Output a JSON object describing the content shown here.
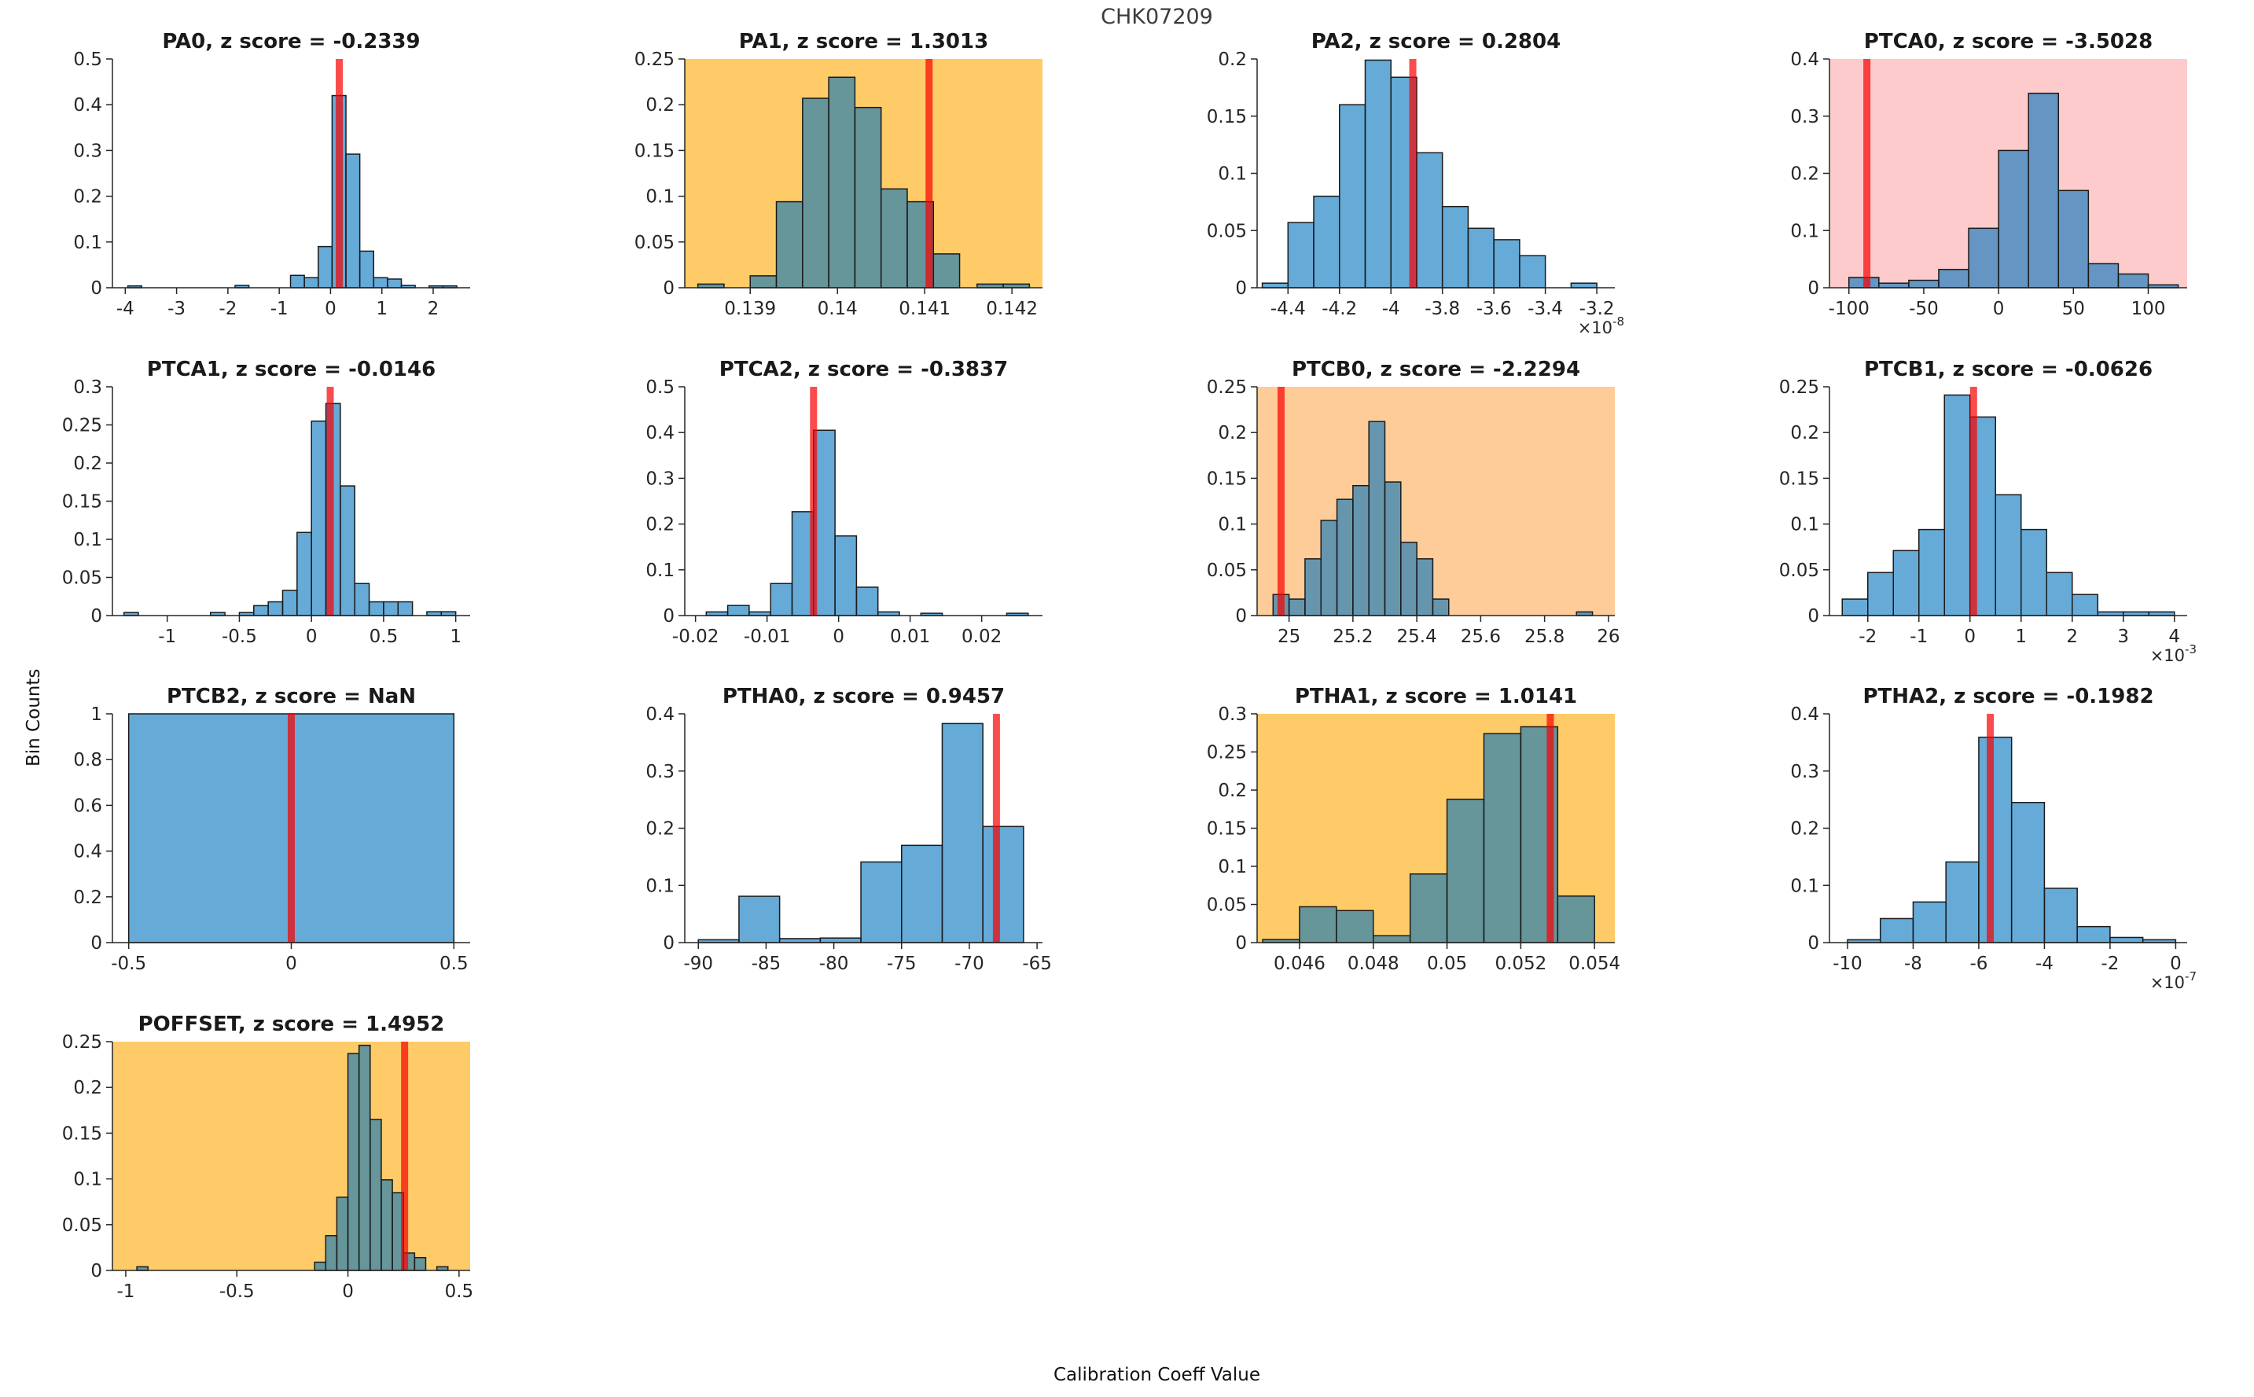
{
  "figure": {
    "title": "CHK07209",
    "xlabel": "Calibration Coeff Value",
    "ylabel": "Bin Counts"
  },
  "colors": {
    "bar_fill_base": "#0072BD",
    "bar_fill_alpha": 0.6,
    "bar_edge": "#1a1a1a",
    "red_line": "#F80000",
    "red_line_alpha": 0.7,
    "axis": "#262626",
    "tick_text": "#262626",
    "title_text": "#1a1a1a",
    "tint": {
      "white": "#FFFFFF",
      "yellow": "#FECB68",
      "orange": "#FECC99",
      "pink": "#FDCBCB"
    }
  },
  "chart_data": [
    {
      "type": "histogram",
      "name": "PA0",
      "title": "PA0, z score = -0.2339",
      "bg": "white",
      "xlim": [
        -4.25,
        2.72
      ],
      "ylim": [
        0,
        0.5
      ],
      "xticks": [
        -4,
        -3,
        -2,
        -1,
        0,
        1,
        2
      ],
      "yticks": [
        0,
        0.1,
        0.2,
        0.3,
        0.4,
        0.5
      ],
      "x_exponent": null,
      "red_line_x": 0.17,
      "bars": [
        [
          -3.95,
          -3.68,
          0.004
        ],
        [
          -1.86,
          -1.59,
          0.005
        ],
        [
          -0.78,
          -0.51,
          0.027
        ],
        [
          -0.51,
          -0.24,
          0.022
        ],
        [
          -0.24,
          0.03,
          0.09
        ],
        [
          0.03,
          0.3,
          0.42
        ],
        [
          0.3,
          0.57,
          0.292
        ],
        [
          0.57,
          0.84,
          0.08
        ],
        [
          0.84,
          1.11,
          0.022
        ],
        [
          1.11,
          1.38,
          0.019
        ],
        [
          1.38,
          1.65,
          0.005
        ],
        [
          1.92,
          2.19,
          0.004
        ],
        [
          2.19,
          2.46,
          0.004
        ]
      ]
    },
    {
      "type": "histogram",
      "name": "PA1",
      "title": "PA1, z score = 1.3013",
      "bg": "yellow",
      "xlim": [
        0.13825,
        0.14235
      ],
      "ylim": [
        0,
        0.25
      ],
      "xticks": [
        0.139,
        0.14,
        0.141,
        0.142
      ],
      "yticks": [
        0,
        0.05,
        0.1,
        0.15,
        0.2,
        0.25
      ],
      "x_exponent": null,
      "red_line_x": 0.14105,
      "bars": [
        [
          0.1384,
          0.1387,
          0.004
        ],
        [
          0.139,
          0.1393,
          0.013
        ],
        [
          0.1393,
          0.1396,
          0.094
        ],
        [
          0.1396,
          0.1399,
          0.207
        ],
        [
          0.1399,
          0.1402,
          0.23
        ],
        [
          0.1402,
          0.1405,
          0.197
        ],
        [
          0.1405,
          0.1408,
          0.108
        ],
        [
          0.1408,
          0.1411,
          0.094
        ],
        [
          0.1411,
          0.1414,
          0.037
        ],
        [
          0.1416,
          0.1419,
          0.004
        ],
        [
          0.1419,
          0.1422,
          0.004
        ]
      ]
    },
    {
      "type": "histogram",
      "name": "PA2",
      "title": "PA2, z score = 0.2804",
      "bg": "white",
      "xlim": [
        -4.52,
        -3.13
      ],
      "ylim": [
        0,
        0.2
      ],
      "xticks": [
        -4.4,
        -4.2,
        -4,
        -3.8,
        -3.6,
        -3.4,
        -3.2
      ],
      "yticks": [
        0,
        0.05,
        0.1,
        0.15,
        0.2
      ],
      "x_exponent": "-8",
      "red_line_x": -3.915,
      "bars": [
        [
          -4.5,
          -4.4,
          0.004
        ],
        [
          -4.4,
          -4.3,
          0.057
        ],
        [
          -4.3,
          -4.2,
          0.08
        ],
        [
          -4.2,
          -4.1,
          0.16
        ],
        [
          -4.1,
          -4,
          0.199
        ],
        [
          -4,
          -3.9,
          0.184
        ],
        [
          -3.9,
          -3.8,
          0.118
        ],
        [
          -3.8,
          -3.7,
          0.071
        ],
        [
          -3.7,
          -3.6,
          0.052
        ],
        [
          -3.6,
          -3.5,
          0.042
        ],
        [
          -3.5,
          -3.4,
          0.028
        ],
        [
          -3.3,
          -3.2,
          0.004
        ]
      ]
    },
    {
      "type": "histogram",
      "name": "PTCA0",
      "title": "PTCA0, z score = -3.5028",
      "bg": "pink",
      "xlim": [
        -113,
        126
      ],
      "ylim": [
        0,
        0.4
      ],
      "xticks": [
        -100,
        -50,
        0,
        50,
        100
      ],
      "yticks": [
        0,
        0.1,
        0.2,
        0.3,
        0.4
      ],
      "x_exponent": null,
      "red_line_x": -88,
      "bars": [
        [
          -100,
          -80,
          0.018
        ],
        [
          -80,
          -60,
          0.008
        ],
        [
          -60,
          -40,
          0.013
        ],
        [
          -40,
          -20,
          0.032
        ],
        [
          -20,
          0,
          0.104
        ],
        [
          0,
          20,
          0.24
        ],
        [
          20,
          40,
          0.34
        ],
        [
          40,
          60,
          0.17
        ],
        [
          60,
          80,
          0.042
        ],
        [
          80,
          100,
          0.024
        ],
        [
          100,
          120,
          0.005
        ]
      ]
    },
    {
      "type": "histogram",
      "name": "PTCA1",
      "title": "PTCA1, z score = -0.0146",
      "bg": "white",
      "xlim": [
        -1.38,
        1.1
      ],
      "ylim": [
        0,
        0.3
      ],
      "xticks": [
        -1,
        -0.5,
        0,
        0.5,
        1
      ],
      "yticks": [
        0,
        0.05,
        0.1,
        0.15,
        0.2,
        0.25,
        0.3
      ],
      "x_exponent": null,
      "red_line_x": 0.13,
      "bars": [
        [
          -1.3,
          -1.2,
          0.004
        ],
        [
          -0.7,
          -0.6,
          0.004
        ],
        [
          -0.5,
          -0.4,
          0.004
        ],
        [
          -0.4,
          -0.3,
          0.013
        ],
        [
          -0.3,
          -0.2,
          0.018
        ],
        [
          -0.2,
          -0.1,
          0.033
        ],
        [
          -0.1,
          0,
          0.109
        ],
        [
          0,
          0.1,
          0.255
        ],
        [
          0.1,
          0.2,
          0.278
        ],
        [
          0.2,
          0.3,
          0.17
        ],
        [
          0.3,
          0.4,
          0.042
        ],
        [
          0.4,
          0.5,
          0.018
        ],
        [
          0.5,
          0.6,
          0.018
        ],
        [
          0.6,
          0.7,
          0.018
        ],
        [
          0.8,
          0.9,
          0.005
        ],
        [
          0.9,
          1,
          0.005
        ]
      ]
    },
    {
      "type": "histogram",
      "name": "PTCA2",
      "title": "PTCA2, z score = -0.3837",
      "bg": "white",
      "xlim": [
        -0.0215,
        0.0285
      ],
      "ylim": [
        0,
        0.5
      ],
      "xticks": [
        -0.02,
        -0.01,
        0,
        0.01,
        0.02
      ],
      "yticks": [
        0,
        0.1,
        0.2,
        0.3,
        0.4,
        0.5
      ],
      "x_exponent": null,
      "red_line_x": -0.0035,
      "bars": [
        [
          -0.0185,
          -0.0155,
          0.008
        ],
        [
          -0.0155,
          -0.0125,
          0.022
        ],
        [
          -0.0125,
          -0.0095,
          0.008
        ],
        [
          -0.0095,
          -0.0065,
          0.07
        ],
        [
          -0.0065,
          -0.0035,
          0.227
        ],
        [
          -0.0035,
          -0.0005,
          0.405
        ],
        [
          -0.0005,
          0.0025,
          0.174
        ],
        [
          0.0025,
          0.0055,
          0.062
        ],
        [
          0.0055,
          0.0085,
          0.008
        ],
        [
          0.0115,
          0.0145,
          0.005
        ],
        [
          0.0235,
          0.0265,
          0.005
        ]
      ]
    },
    {
      "type": "histogram",
      "name": "PTCB0",
      "title": "PTCB0, z score = -2.2294",
      "bg": "orange",
      "xlim": [
        24.9,
        26.02
      ],
      "ylim": [
        0,
        0.25
      ],
      "xticks": [
        25,
        25.2,
        25.4,
        25.6,
        25.8,
        26
      ],
      "yticks": [
        0,
        0.05,
        0.1,
        0.15,
        0.2,
        0.25
      ],
      "x_exponent": null,
      "red_line_x": 24.975,
      "bars": [
        [
          24.95,
          25,
          0.023
        ],
        [
          25,
          25.05,
          0.018
        ],
        [
          25.05,
          25.1,
          0.062
        ],
        [
          25.1,
          25.15,
          0.104
        ],
        [
          25.15,
          25.2,
          0.127
        ],
        [
          25.2,
          25.25,
          0.142
        ],
        [
          25.25,
          25.3,
          0.212
        ],
        [
          25.3,
          25.35,
          0.146
        ],
        [
          25.35,
          25.4,
          0.08
        ],
        [
          25.4,
          25.45,
          0.062
        ],
        [
          25.45,
          25.5,
          0.018
        ],
        [
          25.9,
          25.95,
          0.004
        ]
      ]
    },
    {
      "type": "histogram",
      "name": "PTCB1",
      "title": "PTCB1, z score = -0.0626",
      "bg": "white",
      "xlim": [
        -2.75,
        4.25
      ],
      "ylim": [
        0,
        0.25
      ],
      "xticks": [
        -2,
        -1,
        0,
        1,
        2,
        3,
        4
      ],
      "yticks": [
        0,
        0.05,
        0.1,
        0.15,
        0.2,
        0.25
      ],
      "x_exponent": "-3",
      "red_line_x": 0.07,
      "bars": [
        [
          -2.5,
          -2,
          0.018
        ],
        [
          -2,
          -1.5,
          0.047
        ],
        [
          -1.5,
          -1,
          0.071
        ],
        [
          -1,
          -0.5,
          0.094
        ],
        [
          -0.5,
          0,
          0.241
        ],
        [
          0,
          0.5,
          0.217
        ],
        [
          0.5,
          1,
          0.132
        ],
        [
          1,
          1.5,
          0.094
        ],
        [
          1.5,
          2,
          0.047
        ],
        [
          2,
          2.5,
          0.023
        ],
        [
          2.5,
          3,
          0.004
        ],
        [
          3,
          3.5,
          0.004
        ],
        [
          3.5,
          4,
          0.004
        ]
      ]
    },
    {
      "type": "histogram",
      "name": "PTCB2",
      "title": "PTCB2, z score = NaN",
      "bg": "white",
      "xlim": [
        -0.55,
        0.55
      ],
      "ylim": [
        0,
        1
      ],
      "xticks": [
        -0.5,
        0,
        0.5
      ],
      "yticks": [
        0,
        0.2,
        0.4,
        0.6,
        0.8,
        1
      ],
      "x_exponent": null,
      "red_line_x": 0,
      "bars": [
        [
          -0.5,
          0.5,
          1
        ]
      ]
    },
    {
      "type": "histogram",
      "name": "PTHA0",
      "title": "PTHA0, z score = 0.9457",
      "bg": "white",
      "xlim": [
        -91,
        -64.6
      ],
      "ylim": [
        0,
        0.4
      ],
      "xticks": [
        -90,
        -85,
        -80,
        -75,
        -70,
        -65
      ],
      "yticks": [
        0,
        0.1,
        0.2,
        0.3,
        0.4
      ],
      "x_exponent": null,
      "red_line_x": -68,
      "bars": [
        [
          -90,
          -87,
          0.005
        ],
        [
          -87,
          -84,
          0.081
        ],
        [
          -84,
          -81,
          0.007
        ],
        [
          -81,
          -78,
          0.008
        ],
        [
          -78,
          -75,
          0.141
        ],
        [
          -75,
          -72,
          0.17
        ],
        [
          -72,
          -69,
          0.383
        ],
        [
          -69,
          -66,
          0.203
        ]
      ]
    },
    {
      "type": "histogram",
      "name": "PTHA1",
      "title": "PTHA1, z score = 1.0141",
      "bg": "yellow",
      "xlim": [
        0.04485,
        0.05455
      ],
      "ylim": [
        0,
        0.3
      ],
      "xticks": [
        0.046,
        0.048,
        0.05,
        0.052,
        0.054
      ],
      "yticks": [
        0,
        0.05,
        0.1,
        0.15,
        0.2,
        0.25,
        0.3
      ],
      "x_exponent": null,
      "red_line_x": 0.0528,
      "bars": [
        [
          0.045,
          0.046,
          0.004
        ],
        [
          0.046,
          0.047,
          0.047
        ],
        [
          0.047,
          0.048,
          0.042
        ],
        [
          0.048,
          0.049,
          0.009
        ],
        [
          0.049,
          0.05,
          0.09
        ],
        [
          0.05,
          0.051,
          0.188
        ],
        [
          0.051,
          0.052,
          0.274
        ],
        [
          0.052,
          0.053,
          0.283
        ],
        [
          0.053,
          0.054,
          0.061
        ]
      ]
    },
    {
      "type": "histogram",
      "name": "PTHA2",
      "title": "PTHA2, z score = -0.1982",
      "bg": "white",
      "xlim": [
        -10.55,
        0.35
      ],
      "ylim": [
        0,
        0.4
      ],
      "xticks": [
        -10,
        -8,
        -6,
        -4,
        -2,
        0
      ],
      "yticks": [
        0,
        0.1,
        0.2,
        0.3,
        0.4
      ],
      "x_exponent": "-7",
      "red_line_x": -5.65,
      "bars": [
        [
          -10,
          -9,
          0.005
        ],
        [
          -9,
          -8,
          0.042
        ],
        [
          -8,
          -7,
          0.071
        ],
        [
          -7,
          -6,
          0.141
        ],
        [
          -6,
          -5,
          0.359
        ],
        [
          -5,
          -4,
          0.245
        ],
        [
          -4,
          -3,
          0.095
        ],
        [
          -3,
          -2,
          0.028
        ],
        [
          -2,
          -1,
          0.009
        ],
        [
          -1,
          0,
          0.005
        ]
      ]
    },
    {
      "type": "histogram",
      "name": "POFFSET",
      "title": "POFFSET, z score = 1.4952",
      "bg": "yellow",
      "xlim": [
        -1.06,
        0.55
      ],
      "ylim": [
        0,
        0.25
      ],
      "xticks": [
        -1,
        -0.5,
        0,
        0.5
      ],
      "yticks": [
        0,
        0.05,
        0.1,
        0.15,
        0.2,
        0.25
      ],
      "x_exponent": null,
      "red_line_x": 0.255,
      "bars": [
        [
          -0.95,
          -0.9,
          0.004
        ],
        [
          -0.15,
          -0.1,
          0.009
        ],
        [
          -0.1,
          -0.05,
          0.038
        ],
        [
          -0.05,
          0,
          0.08
        ],
        [
          0,
          0.05,
          0.237
        ],
        [
          0.05,
          0.1,
          0.246
        ],
        [
          0.1,
          0.15,
          0.165
        ],
        [
          0.15,
          0.2,
          0.099
        ],
        [
          0.2,
          0.25,
          0.085
        ],
        [
          0.25,
          0.3,
          0.019
        ],
        [
          0.3,
          0.35,
          0.014
        ],
        [
          0.4,
          0.45,
          0.004
        ]
      ]
    }
  ]
}
